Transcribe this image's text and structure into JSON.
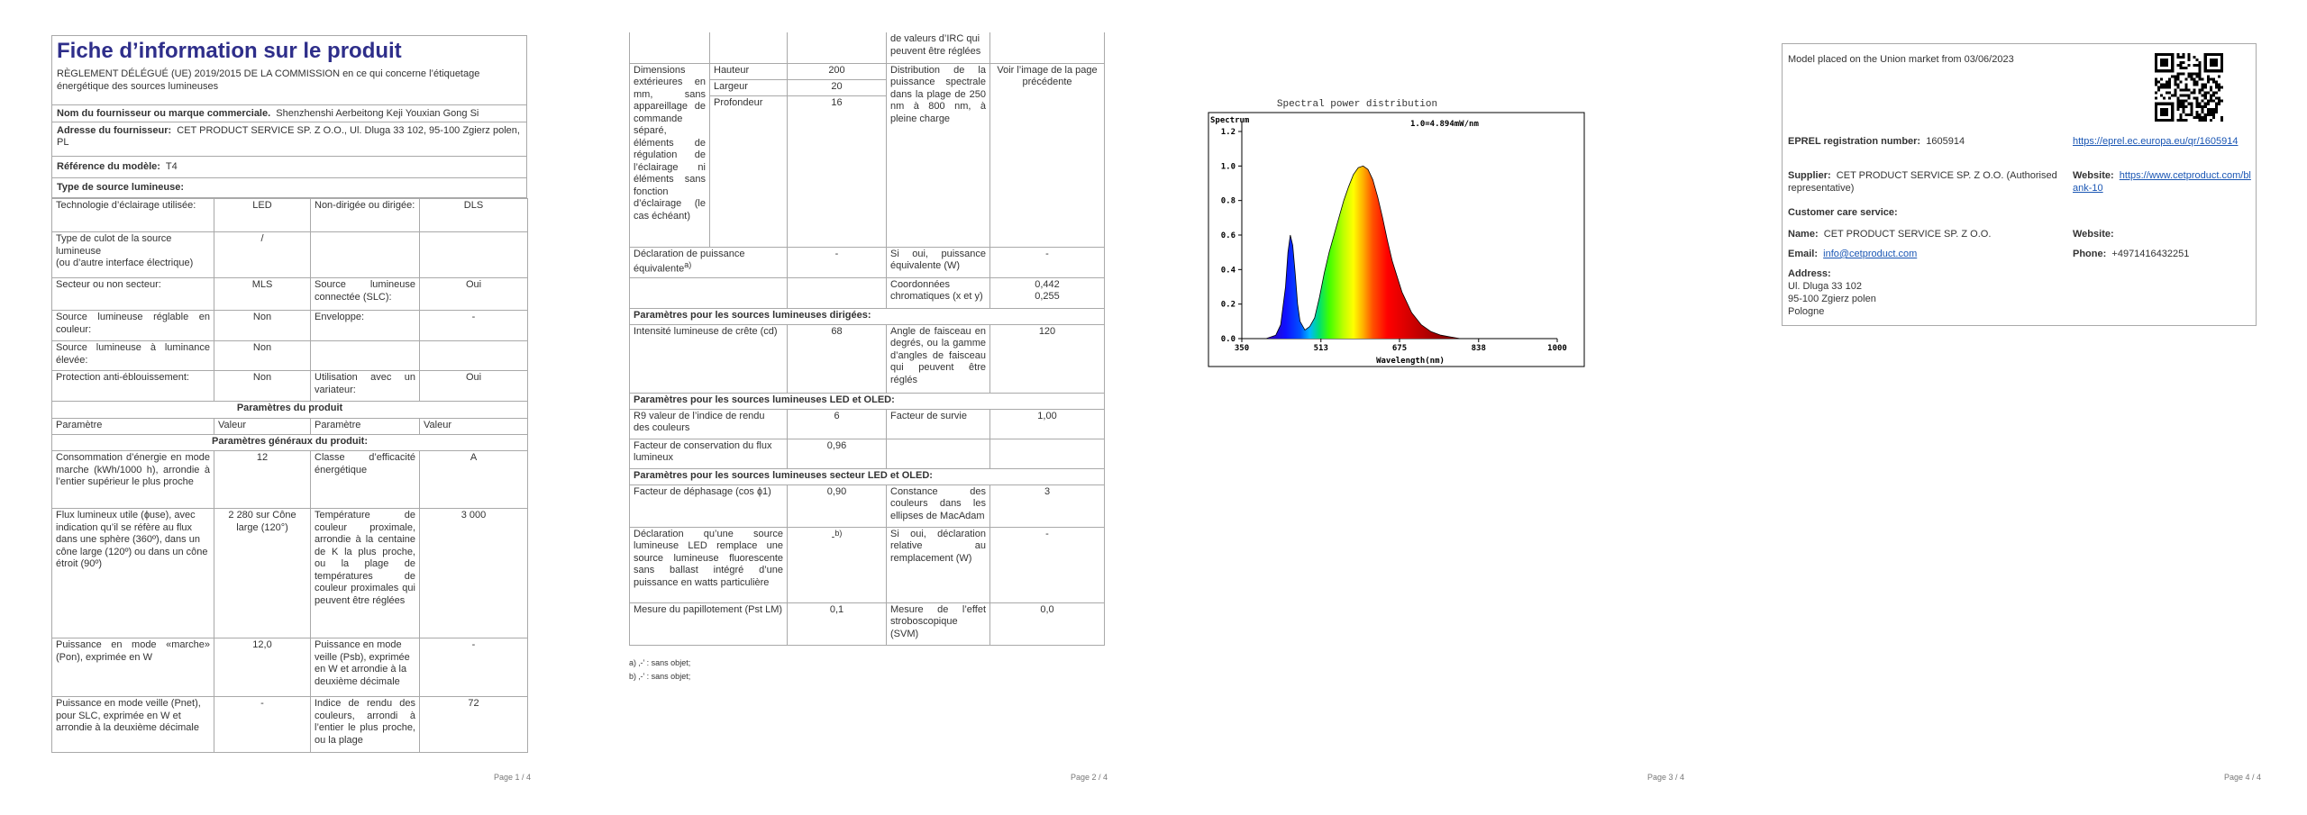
{
  "page1": {
    "title": "Fiche d’information sur le produit",
    "regulation": "RÈGLEMENT DÉLÉGUÉ (UE) 2019/2015 DE LA COMMISSION en ce qui concerne l’étiquetage énergétique des sources lumineuses",
    "supplier_label": "Nom du fournisseur ou marque commerciale.",
    "supplier_value": "Shenzhenshi Aerbeitong Keji Youxian Gong Si",
    "address_label": "Adresse du fournisseur:",
    "address_value": "CET PRODUCT SERVICE SP. Z O.O., Ul. Dluga 33 102, 95-100 Zgierz polen, PL",
    "model_label": "Référence du modèle:",
    "model_value": "T4",
    "type_header": "Type de source lumineuse:",
    "rows": [
      [
        "Technologie d’éclairage utilisée:",
        "LED",
        "Non-dirigée ou dirigée:",
        "DLS"
      ],
      [
        "Type de culot de la source lumineuse\n(ou d’autre interface électrique)",
        "/",
        "",
        ""
      ],
      [
        "Secteur ou non secteur:",
        "MLS",
        "Source lumineuse connectée (SLC):",
        "Oui"
      ],
      [
        "Source lumineuse réglable en couleur:",
        "Non",
        "Enveloppe:",
        "-"
      ],
      [
        "Source lumineuse à luminance élevée:",
        "Non",
        "",
        ""
      ],
      [
        "Protection anti-éblouissement:",
        "Non",
        "Utilisation avec un variateur:",
        "Oui"
      ]
    ],
    "params_header": "Paramètres du produit",
    "col_headers": [
      "Paramètre",
      "Valeur",
      "Paramètre",
      "Valeur"
    ],
    "general_header": "Paramètres généraux du produit:",
    "general_rows": [
      [
        "Consommation d’énergie en mode marche (kWh/1000 h), arrondie à l’entier supérieur le plus proche",
        "12",
        "Classe d’efficacité énergétique",
        "A"
      ],
      [
        "Flux lumineux utile (ɸuse), avec indication qu’il se réfère au flux dans une sphère (360º), dans un cône large (120º) ou dans un cône étroit (90º)",
        "2 280 sur Cône large (120°)",
        "Température de couleur proximale, arrondie à la centaine de K la plus proche, ou la plage de températures de couleur proximales qui peuvent être réglées",
        "3 000"
      ],
      [
        "Puissance en mode «marche» (Pon), exprimée en W",
        "12,0",
        "Puissance en mode veille (Psb), exprimée en W et arrondie à la deuxième décimale",
        "-"
      ],
      [
        "Puissance en mode veille (Pnet), pour SLC, exprimée en W et arrondie à la deuxième décimale",
        "-",
        "Indice de rendu des couleurs, arrondi à l’entier le plus proche, ou la plage",
        "72"
      ]
    ],
    "page_num": "Page 1 / 4"
  },
  "page2": {
    "top_cont": "de valeurs d’IRC qui peuvent être réglées",
    "dims_label": "Dimensions extérieures en mm, sans appareillage de commande séparé, éléments de régulation de l’éclairage ni éléments sans fonction d’éclairage (le cas échéant)",
    "dims": [
      [
        "Hauteur",
        "200"
      ],
      [
        "Largeur",
        "20"
      ],
      [
        "Profondeur",
        "16"
      ]
    ],
    "spectral_label": "Distribution de la puissance spectrale dans la plage de 250 nm à 800 nm, à pleine charge",
    "spectral_value": "Voir l’image de la page précédente",
    "equiv_label": "Déclaration de puissance équivalente",
    "equiv_sup": "a)",
    "equiv_value": "-",
    "equiv_r_label": "Si oui, puissance équivalente (W)",
    "equiv_r_value": "-",
    "coord_label": "Coordonnées chromatiques (x et y)",
    "coord_x": "0,442",
    "coord_y": "0,255",
    "directed_header": "Paramètres pour les sources lumineuses dirigées:",
    "peak_label": "Intensité lumineuse de crête (cd)",
    "peak_value": "68",
    "beam_label": "Angle de faisceau en degrés, ou la gamme d’angles de faisceau qui peuvent être réglés",
    "beam_value": "120",
    "led_header": "Paramètres pour les sources lumineuses LED et OLED:",
    "r9_label": "R9 valeur de l’indice de rendu des couleurs",
    "r9_value": "6",
    "surv_label": "Facteur de survie",
    "surv_value": "1,00",
    "flux_label": "Facteur de conservation du flux lumineux",
    "flux_value": "0,96",
    "mains_header": "Paramètres pour les sources lumineuses secteur LED et OLED:",
    "cos_label": "Facteur de déphasage (cos ɸ1)",
    "cos_value": "0,90",
    "mac_label": "Constance des couleurs dans les ellipses de MacAdam",
    "mac_value": "3",
    "decl_label": "Déclaration qu’une source lumineuse LED remplace une source lumineuse fluorescente sans ballast intégré d’une puissance en watts particulière",
    "decl_value": "-",
    "decl_sup": "b)",
    "decl_r_label": "Si oui, déclaration relative au remplacement (W)",
    "decl_r_value": "-",
    "flick_label": "Mesure du papillotement (Pst LM)",
    "flick_value": "0,1",
    "svm_label": "Mesure de l’effet stroboscopique (SVM)",
    "svm_value": "0,0",
    "fn_a": "a) ‚-’ : sans objet;",
    "fn_b": "b) ‚-’ : sans objet;",
    "page_num": "Page 2 / 4"
  },
  "page3": {
    "page_num": "Page 3 / 4",
    "chart_data": {
      "type": "area",
      "title": "Spectral power distribution",
      "ylabel": "Spectrum",
      "xlabel": "Wavelength(nm)",
      "annotation": "1.0=4.894mW/nm",
      "xlim": [
        350,
        1000
      ],
      "ylim": [
        0,
        1.2
      ],
      "x_ticks": [
        "350",
        "513",
        "675",
        "838",
        "1000"
      ],
      "y_ticks": [
        "0.0",
        "0.2",
        "0.4",
        "0.6",
        "0.8",
        "1.0",
        "1.2"
      ],
      "grid": false,
      "x": [
        350,
        400,
        420,
        430,
        440,
        445,
        450,
        455,
        460,
        465,
        470,
        480,
        490,
        500,
        510,
        520,
        530,
        540,
        550,
        560,
        570,
        580,
        590,
        600,
        610,
        620,
        630,
        640,
        650,
        660,
        680,
        700,
        720,
        740,
        760,
        780,
        800
      ],
      "values": [
        0,
        0,
        0.02,
        0.08,
        0.3,
        0.5,
        0.6,
        0.54,
        0.38,
        0.2,
        0.1,
        0.05,
        0.07,
        0.12,
        0.24,
        0.38,
        0.5,
        0.6,
        0.7,
        0.8,
        0.88,
        0.95,
        0.99,
        1.0,
        0.98,
        0.92,
        0.82,
        0.7,
        0.57,
        0.45,
        0.27,
        0.15,
        0.08,
        0.04,
        0.02,
        0.01,
        0
      ]
    }
  },
  "page4": {
    "placed": "Model placed on the Union market from 03/06/2023",
    "reg_label": "EPREL registration number:",
    "reg_value": "1605914",
    "reg_link": "https://eprel.ec.europa.eu/qr/1605914",
    "supplier_label": "Supplier:",
    "supplier_value": "CET PRODUCT SERVICE SP. Z O.O. (Authorised representative)",
    "website_label": "Website:",
    "website_value": "https://www.cetproduct.com/blank-10",
    "care_label": "Customer care service:",
    "name_label": "Name:",
    "name_value": "CET PRODUCT SERVICE SP. Z O.O.",
    "web2_label": "Website:",
    "email_label": "Email:",
    "email_value": "info@cetproduct.com",
    "phone_label": "Phone:",
    "phone_value": "+4971416432251",
    "address_label": "Address:",
    "address_lines": [
      "Ul. Dluga 33 102",
      "95-100 Zgierz polen",
      "Pologne"
    ],
    "page_num": "Page 4 / 4"
  }
}
